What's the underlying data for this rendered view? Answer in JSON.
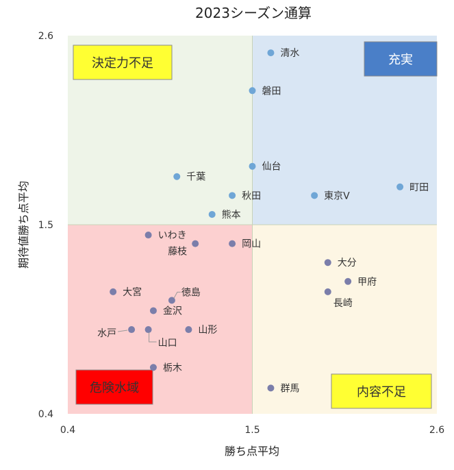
{
  "chart_data": {
    "type": "scatter",
    "title": "2023シーズン通算",
    "xlabel": "勝ち点平均",
    "ylabel": "期待値勝ち点平均",
    "xlim": [
      0.4,
      2.6
    ],
    "ylim": [
      0.4,
      2.6
    ],
    "xticks": [
      "0.4",
      "1.5",
      "2.6"
    ],
    "yticks": [
      "0.4",
      "1.5",
      "2.6"
    ],
    "grid": false,
    "threshold": {
      "x": 1.5,
      "y": 1.5
    },
    "quadrants": [
      {
        "label": "決定力不足",
        "position": "top-left",
        "fill": "#eef4e8",
        "label_bg": "#ffff33",
        "label_color": "#333333"
      },
      {
        "label": "充実",
        "position": "top-right",
        "fill": "#d9e6f4",
        "label_bg": "#4a7fc8",
        "label_color": "#ffffff"
      },
      {
        "label": "危険水域",
        "position": "bottom-left",
        "fill": "#fcd0d0",
        "label_bg": "#ff0000",
        "label_color": "#333333"
      },
      {
        "label": "内容不足",
        "position": "bottom-right",
        "fill": "#fdf6e4",
        "label_bg": "#ffff33",
        "label_color": "#333333"
      }
    ],
    "points": [
      {
        "name": "清水",
        "x": 1.61,
        "y": 2.5
      },
      {
        "name": "磐田",
        "x": 1.5,
        "y": 2.28
      },
      {
        "name": "仙台",
        "x": 1.5,
        "y": 1.84
      },
      {
        "name": "千葉",
        "x": 1.05,
        "y": 1.78
      },
      {
        "name": "秋田",
        "x": 1.38,
        "y": 1.67
      },
      {
        "name": "東京V",
        "x": 1.87,
        "y": 1.67
      },
      {
        "name": "町田",
        "x": 2.38,
        "y": 1.72
      },
      {
        "name": "熊本",
        "x": 1.26,
        "y": 1.56
      },
      {
        "name": "いわき",
        "x": 0.88,
        "y": 1.44
      },
      {
        "name": "藤枝",
        "x": 1.16,
        "y": 1.39
      },
      {
        "name": "岡山",
        "x": 1.38,
        "y": 1.39
      },
      {
        "name": "大分",
        "x": 1.95,
        "y": 1.28
      },
      {
        "name": "甲府",
        "x": 2.07,
        "y": 1.17
      },
      {
        "name": "長崎",
        "x": 1.95,
        "y": 1.11
      },
      {
        "name": "大宮",
        "x": 0.67,
        "y": 1.11
      },
      {
        "name": "徳島",
        "x": 1.02,
        "y": 1.06
      },
      {
        "name": "金沢",
        "x": 0.91,
        "y": 1.0
      },
      {
        "name": "水戸",
        "x": 0.78,
        "y": 0.89
      },
      {
        "name": "山口",
        "x": 0.88,
        "y": 0.89
      },
      {
        "name": "山形",
        "x": 1.12,
        "y": 0.89
      },
      {
        "name": "栃木",
        "x": 0.91,
        "y": 0.67
      },
      {
        "name": "群馬",
        "x": 1.61,
        "y": 0.55
      }
    ]
  }
}
